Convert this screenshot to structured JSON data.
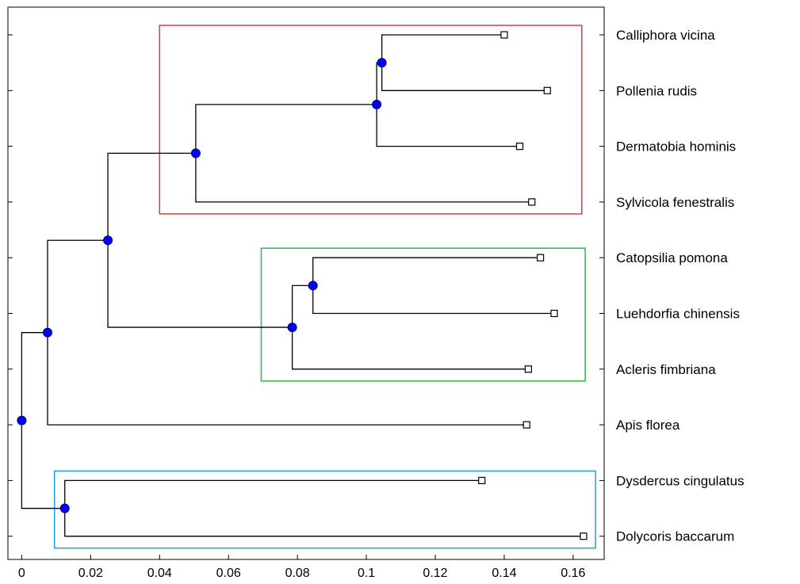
{
  "chart_data": {
    "type": "dendrogram",
    "x_ticks": [
      "0",
      "0.02",
      "0.04",
      "0.06",
      "0.08",
      "0.1",
      "0.12",
      "0.14",
      "0.16"
    ],
    "x_tick_values": [
      0,
      0.02,
      0.04,
      0.06,
      0.08,
      0.1,
      0.12,
      0.14,
      0.16
    ],
    "xlim": [
      -0.004,
      0.169
    ],
    "leaves": [
      {
        "name": "Calliphora vicina",
        "tip_x": 0.14
      },
      {
        "name": "Pollenia rudis",
        "tip_x": 0.1525
      },
      {
        "name": "Dermatobia hominis",
        "tip_x": 0.1445
      },
      {
        "name": "Sylvicola fenestralis",
        "tip_x": 0.148
      },
      {
        "name": "Catopsilia pomona",
        "tip_x": 0.1505
      },
      {
        "name": "Luehdorfia chinensis",
        "tip_x": 0.1545
      },
      {
        "name": "Acleris fimbriana",
        "tip_x": 0.147
      },
      {
        "name": "Apis florea",
        "tip_x": 0.1465
      },
      {
        "name": "Dysdercus cingulatus",
        "tip_x": 0.1335
      },
      {
        "name": "Dolycoris baccarum",
        "tip_x": 0.163
      }
    ],
    "nodes": [
      {
        "id": "n1",
        "x": 0.1045,
        "children": [
          "L0",
          "L1"
        ]
      },
      {
        "id": "n2",
        "x": 0.103,
        "children": [
          "n1",
          "L2"
        ]
      },
      {
        "id": "n3",
        "x": 0.0505,
        "children": [
          "n2",
          "L3"
        ]
      },
      {
        "id": "n4",
        "x": 0.0845,
        "children": [
          "L4",
          "L5"
        ]
      },
      {
        "id": "n5",
        "x": 0.0785,
        "children": [
          "n4",
          "L6"
        ]
      },
      {
        "id": "n6",
        "x": 0.025,
        "children": [
          "n3",
          "n5"
        ]
      },
      {
        "id": "n7",
        "x": 0.0075,
        "children": [
          "n6",
          "L7"
        ]
      },
      {
        "id": "n8",
        "x": 0.0125,
        "children": [
          "L8",
          "L9"
        ]
      },
      {
        "id": "n9",
        "x": 0.0,
        "children": [
          "n7",
          "n8"
        ]
      }
    ],
    "clade_boxes": [
      {
        "color": "#e03c3c",
        "x_range": [
          0.04,
          0.1625
        ],
        "leaf_range": [
          0,
          3
        ]
      },
      {
        "color": "#2db84a",
        "x_range": [
          0.0695,
          0.1635
        ],
        "leaf_range": [
          4,
          6
        ]
      },
      {
        "color": "#1aa3e0",
        "x_range": [
          0.0095,
          0.1665
        ],
        "leaf_range": [
          8,
          9
        ]
      }
    ],
    "node_color": "#0000ff",
    "grid": false
  }
}
